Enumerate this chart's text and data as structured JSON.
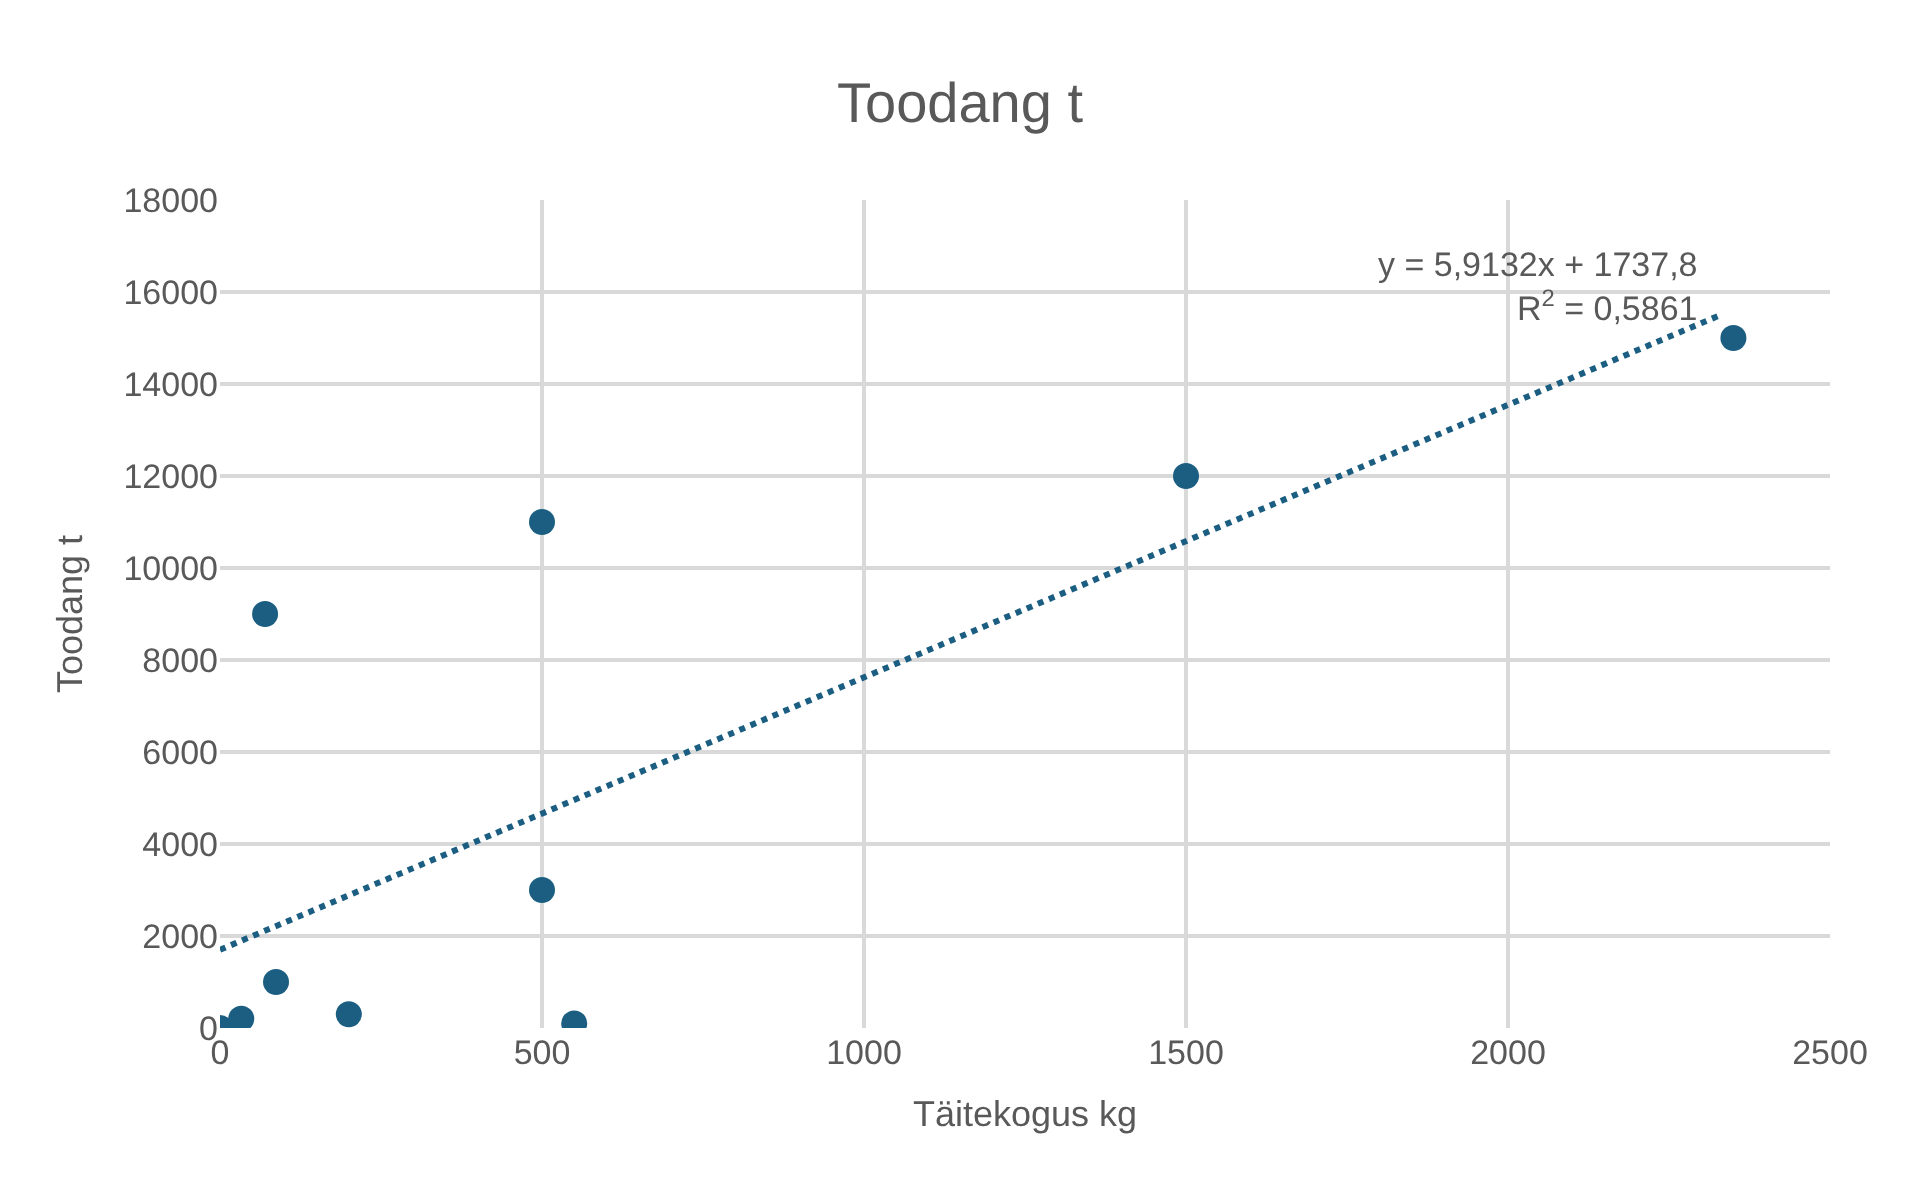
{
  "chart_data": {
    "type": "scatter",
    "title": "Toodang t",
    "xlabel": "Täitekogus kg",
    "ylabel": "Toodang t",
    "xlim": [
      0,
      2500
    ],
    "xticks": [
      0,
      500,
      1000,
      1500,
      2000,
      2500
    ],
    "ylim": [
      0,
      18000
    ],
    "yticks": [
      0,
      2000,
      4000,
      6000,
      8000,
      10000,
      12000,
      14000,
      16000,
      18000
    ],
    "grid": true,
    "marker": "circle",
    "series": [
      {
        "color": "#1b5e82",
        "x": [
          0,
          33,
          87,
          70,
          200,
          500,
          500,
          550,
          1500,
          2350
        ],
        "values": [
          0,
          200,
          1000,
          9000,
          300,
          3000,
          11000,
          100,
          12000,
          15000
        ]
      },
      {
        "type": "line",
        "color": "#1b5e82",
        "line_style": "dotted",
        "marker": "none",
        "x": [
          0,
          2330
        ],
        "values": [
          1700,
          15500
        ]
      }
    ],
    "annotations": [
      "y = 5,9132x + 1737,8\nR$^{2}$ = 0,5861"
    ]
  }
}
